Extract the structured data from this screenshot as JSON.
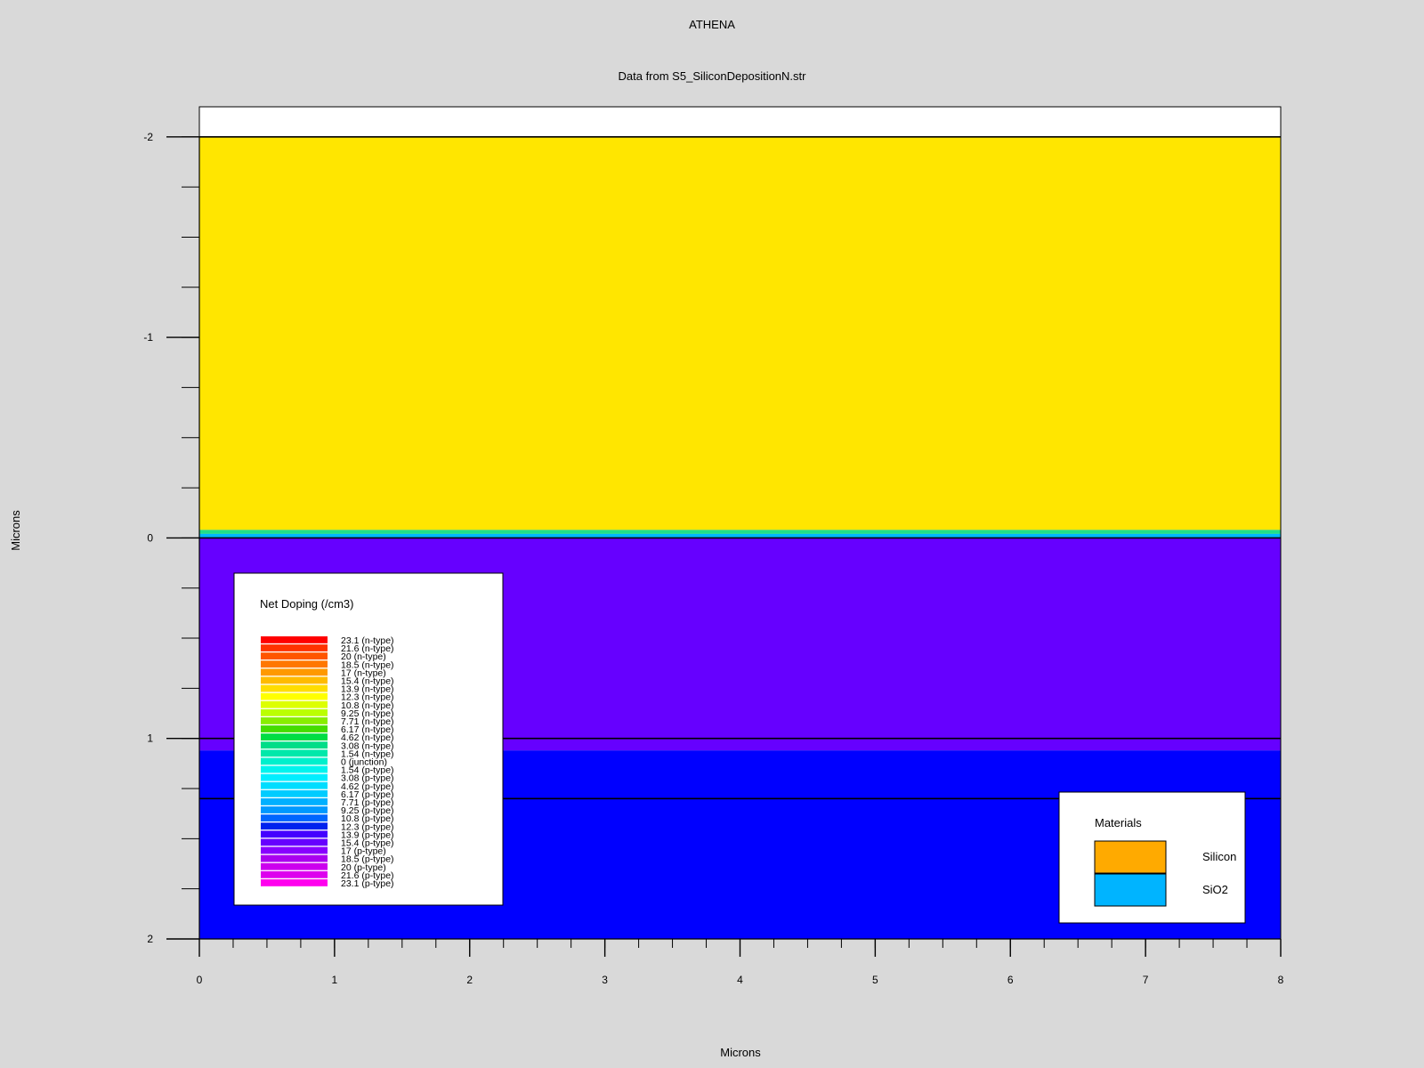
{
  "chart_data": {
    "type": "heatmap",
    "title": "ATHENA",
    "subtitle": "Data from S5_SiliconDepositionN.str",
    "xlabel": "Microns",
    "ylabel": "Microns",
    "xlim": [
      0,
      8
    ],
    "ylim": [
      -2.15,
      2
    ],
    "y_inverted": true,
    "x_ticks": [
      0,
      1,
      2,
      3,
      4,
      5,
      6,
      7,
      8
    ],
    "y_ticks": [
      -2,
      -1,
      0,
      1,
      2
    ],
    "x_minor_step": 0.25,
    "y_minor_step": 0.25,
    "regions": [
      {
        "y0": -2.15,
        "y1": -2.0,
        "fill": "#ffffff",
        "label": "above surface"
      },
      {
        "y0": -2.0,
        "y1": -0.04,
        "fill": "#ffe600"
      },
      {
        "y0": -0.04,
        "y1": -0.02,
        "fill": "#21e08a"
      },
      {
        "y0": -0.02,
        "y1": 0.0,
        "fill": "#00b8ff"
      },
      {
        "y0": 0.0,
        "y1": 1.06,
        "fill": "#6600ff"
      },
      {
        "y0": 1.06,
        "y1": 2.0,
        "fill": "#0000ff"
      }
    ],
    "boundaries": [
      -2.0,
      0.0,
      1.0,
      1.3
    ],
    "legend_doping": {
      "title": "Net Doping (/cm3)",
      "placement": "lower-left",
      "entries": [
        {
          "label": "23.1 (n-type)",
          "color": "#ff0000"
        },
        {
          "label": "21.6 (n-type)",
          "color": "#ff3300"
        },
        {
          "label": "20 (n-type)",
          "color": "#ff5500"
        },
        {
          "label": "18.5 (n-type)",
          "color": "#ff7700"
        },
        {
          "label": "17 (n-type)",
          "color": "#ff9900"
        },
        {
          "label": "15.4 (n-type)",
          "color": "#ffbb00"
        },
        {
          "label": "13.9 (n-type)",
          "color": "#ffdd00"
        },
        {
          "label": "12.3 (n-type)",
          "color": "#ffff00"
        },
        {
          "label": "10.8 (n-type)",
          "color": "#ddff00"
        },
        {
          "label": "9.25 (n-type)",
          "color": "#bbff00"
        },
        {
          "label": "7.71 (n-type)",
          "color": "#88ee00"
        },
        {
          "label": "6.17 (n-type)",
          "color": "#44dd00"
        },
        {
          "label": "4.62 (n-type)",
          "color": "#00dd44"
        },
        {
          "label": "3.08 (n-type)",
          "color": "#00dd88"
        },
        {
          "label": "1.54 (n-type)",
          "color": "#00e8aa"
        },
        {
          "label": "0 (junction)",
          "color": "#00f0cc"
        },
        {
          "label": "1.54 (p-type)",
          "color": "#00f4ee"
        },
        {
          "label": "3.08 (p-type)",
          "color": "#00eeff"
        },
        {
          "label": "4.62 (p-type)",
          "color": "#00ddff"
        },
        {
          "label": "6.17 (p-type)",
          "color": "#00ccff"
        },
        {
          "label": "7.71 (p-type)",
          "color": "#00b0ff"
        },
        {
          "label": "9.25 (p-type)",
          "color": "#0099ff"
        },
        {
          "label": "10.8 (p-type)",
          "color": "#0066ff"
        },
        {
          "label": "12.3 (p-type)",
          "color": "#0022ee"
        },
        {
          "label": "13.9 (p-type)",
          "color": "#4400ff"
        },
        {
          "label": "15.4 (p-type)",
          "color": "#6600ff"
        },
        {
          "label": "17 (p-type)",
          "color": "#8800ff"
        },
        {
          "label": "18.5 (p-type)",
          "color": "#aa00ee"
        },
        {
          "label": "20 (p-type)",
          "color": "#cc00ee"
        },
        {
          "label": "21.6 (p-type)",
          "color": "#dd00ee"
        },
        {
          "label": "23.1 (p-type)",
          "color": "#ff00ee"
        }
      ]
    },
    "legend_materials": {
      "title": "Materials",
      "placement": "lower-right",
      "entries": [
        {
          "label": "Silicon",
          "color": "#ffaa00"
        },
        {
          "label": "SiO2",
          "color": "#00b4ff"
        }
      ]
    }
  }
}
